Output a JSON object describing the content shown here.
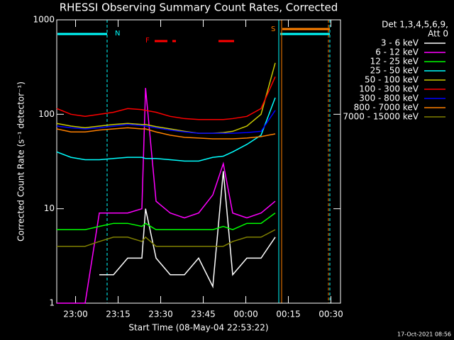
{
  "chart_data": {
    "type": "line",
    "title": "RHESSI Observing Summary Count Rates, Corrected",
    "x_label": "Start Time (08-May-04 22:53:22)",
    "y_label": "Corrected Count Rate (s⁻¹ detector⁻¹)",
    "legend_title": [
      "Det 1,3,4,5,6,9,",
      "Att 0"
    ],
    "annotations": [
      "N",
      "F",
      "S"
    ],
    "footer": "17-Oct-2021 08:56",
    "log_y": true,
    "xlim": [
      0,
      100
    ],
    "ylim": [
      1,
      1000
    ],
    "xticks": [
      {
        "value": 6.63,
        "label": "23:00"
      },
      {
        "value": 21.63,
        "label": "23:15"
      },
      {
        "value": 36.63,
        "label": "23:30"
      },
      {
        "value": 51.63,
        "label": "23:45"
      },
      {
        "value": 66.63,
        "label": "00:00"
      },
      {
        "value": 81.63,
        "label": "00:15"
      },
      {
        "value": 96.63,
        "label": "00:30"
      }
    ],
    "yticks": [
      1,
      10,
      100,
      1000
    ],
    "x": [
      0,
      5,
      10,
      15,
      20,
      25,
      30,
      31.3,
      35,
      40,
      45,
      50,
      55,
      58.7,
      62,
      67,
      72,
      77
    ],
    "series": [
      {
        "name": "3 - 6 keV",
        "color": "#ffffff",
        "values": [
          null,
          null,
          null,
          2,
          2,
          3,
          3,
          10,
          3,
          2,
          2,
          3,
          1.5,
          25,
          2,
          3,
          3,
          5
        ]
      },
      {
        "name": "6 - 12 keV",
        "color": "#ff00ff",
        "values": [
          1,
          1,
          1,
          9,
          9,
          9,
          10,
          190,
          12,
          9,
          8,
          9,
          14,
          30,
          9,
          8,
          9,
          12
        ]
      },
      {
        "name": "12 - 25 keV",
        "color": "#00ff00",
        "values": [
          6,
          6,
          6,
          6.5,
          7,
          7,
          6.5,
          7,
          6,
          6,
          6,
          6,
          6,
          6.5,
          6,
          7,
          7,
          9
        ]
      },
      {
        "name": "25 - 50 keV",
        "color": "#00ffff",
        "values": [
          40,
          35,
          33,
          33,
          34,
          35,
          35,
          34,
          34,
          33,
          32,
          32,
          35,
          36,
          40,
          48,
          60,
          150
        ]
      },
      {
        "name": "50 - 100 keV",
        "color": "#c8c800",
        "values": [
          80,
          75,
          72,
          75,
          78,
          80,
          78,
          78,
          74,
          70,
          66,
          63,
          63,
          64,
          66,
          75,
          100,
          350
        ]
      },
      {
        "name": "100 - 300 keV",
        "color": "#ff0000",
        "values": [
          115,
          100,
          95,
          100,
          105,
          115,
          112,
          110,
          105,
          95,
          90,
          88,
          88,
          88,
          90,
          95,
          115,
          250
        ]
      },
      {
        "name": "300 - 800 keV",
        "color": "#0000ff",
        "values": [
          75,
          72,
          70,
          72,
          75,
          78,
          76,
          75,
          72,
          68,
          65,
          63,
          63,
          63,
          63,
          64,
          66,
          110
        ]
      },
      {
        "name": "800 - 7000 keV",
        "color": "#ff8000",
        "values": [
          70,
          65,
          65,
          68,
          70,
          72,
          70,
          70,
          65,
          60,
          57,
          56,
          55,
          55,
          55,
          56,
          58,
          62
        ]
      },
      {
        "name": "7000 - 15000 keV",
        "color": "#808000",
        "values": [
          4,
          4,
          4,
          4.5,
          5,
          5,
          4.5,
          5,
          4,
          4,
          4,
          4,
          4,
          4,
          4.5,
          5,
          5,
          6
        ]
      }
    ]
  }
}
